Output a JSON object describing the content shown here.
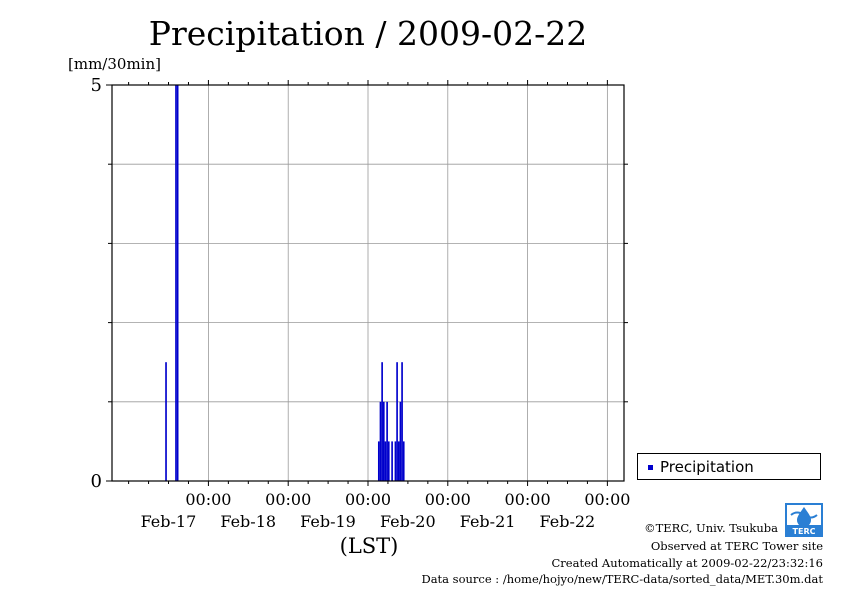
{
  "chart_data": {
    "type": "bar",
    "title": "Precipitation / 2009-02-22",
    "ylabel": "[mm/30min]",
    "xlabel": "(LST)",
    "ylim": [
      0,
      5
    ],
    "y_ticks": [
      0,
      5
    ],
    "y_gridlines": [
      1,
      2,
      3,
      4
    ],
    "x_range_hours": [
      -29,
      125
    ],
    "x_tick_hours": [
      0,
      24,
      48,
      72,
      96,
      120
    ],
    "x_tick_time_labels": [
      "00:00",
      "00:00",
      "00:00",
      "00:00",
      "00:00",
      "00:00"
    ],
    "x_tick_date_labels": [
      "Feb-17",
      "Feb-18",
      "Feb-19",
      "Feb-20",
      "Feb-21",
      "Feb-22"
    ],
    "grid": true,
    "legend_position": "right",
    "series": [
      {
        "name": "Precipitation",
        "color": "#0000cc",
        "points": [
          {
            "hour": -13.0,
            "value": 1.5
          },
          {
            "hour": -10.0,
            "value": 5.0
          },
          {
            "hour": -9.5,
            "value": 5.0
          },
          {
            "hour": 51.0,
            "value": 0.5
          },
          {
            "hour": 51.5,
            "value": 1.0
          },
          {
            "hour": 52.0,
            "value": 1.5
          },
          {
            "hour": 52.5,
            "value": 1.0
          },
          {
            "hour": 53.0,
            "value": 0.5
          },
          {
            "hour": 53.5,
            "value": 1.0
          },
          {
            "hour": 54.0,
            "value": 0.5
          },
          {
            "hour": 55.0,
            "value": 0.5
          },
          {
            "hour": 56.0,
            "value": 0.5
          },
          {
            "hour": 56.5,
            "value": 1.5
          },
          {
            "hour": 57.0,
            "value": 0.5
          },
          {
            "hour": 57.5,
            "value": 1.0
          },
          {
            "hour": 58.0,
            "value": 1.5
          },
          {
            "hour": 58.5,
            "value": 0.5
          }
        ]
      }
    ]
  },
  "legend": {
    "label": "Precipitation"
  },
  "footer": {
    "copyright": "©TERC, Univ. Tsukuba",
    "observed": "Observed at TERC Tower site",
    "created": "Created Automatically at 2009-02-22/23:32:16",
    "source": "Data source : /home/hojyo/new/TERC-data/sorted_data/MET.30m.dat"
  },
  "logo": {
    "text": "TERC"
  }
}
